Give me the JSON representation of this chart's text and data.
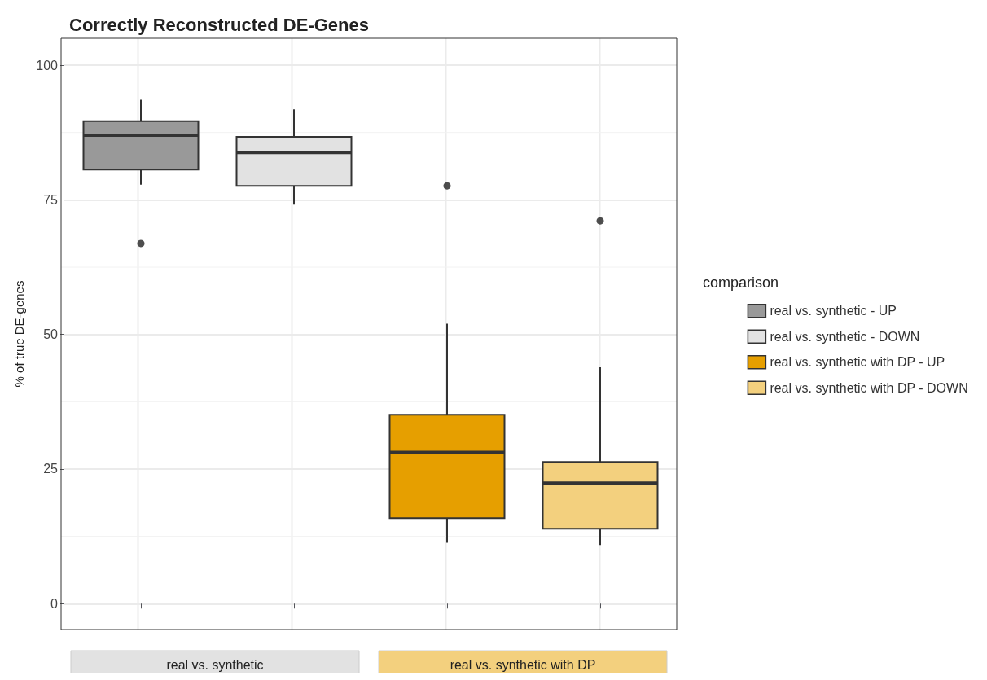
{
  "chart_data": {
    "type": "box",
    "title": "Correctly Reconstructed DE-Genes",
    "ylabel": "% of true DE-genes",
    "legend_title": "comparison",
    "categories": [
      null,
      null,
      null,
      null
    ],
    "series": [
      {
        "name": "real vs. synthetic - UP",
        "color": "#999999",
        "boxes": [
          {
            "low": 77.8,
            "q1": 80.6,
            "median": 87.0,
            "q3": 89.6,
            "high": 93.6,
            "outliers": [
              66.9
            ]
          },
          null,
          null,
          null
        ]
      },
      {
        "name": "real vs. synthetic - DOWN",
        "color": "#e2e2e2",
        "boxes": [
          null,
          {
            "low": 74.1,
            "q1": 77.6,
            "median": 83.8,
            "q3": 86.7,
            "high": 91.8
          },
          null,
          null
        ]
      },
      {
        "name": "real vs. synthetic with DP - UP",
        "color": "#e69f00",
        "boxes": [
          null,
          null,
          {
            "low": 11.3,
            "q1": 15.9,
            "median": 28.1,
            "q3": 35.1,
            "high": 52.0,
            "outliers": [
              77.6
            ]
          },
          null
        ]
      },
      {
        "name": "real vs. synthetic with DP - DOWN",
        "color": "#f3d07e",
        "boxes": [
          null,
          null,
          null,
          {
            "low": 10.9,
            "q1": 13.9,
            "median": 22.4,
            "q3": 26.3,
            "high": 43.9,
            "outliers": [
              71.1
            ]
          }
        ]
      }
    ],
    "annotations": [
      "real vs. synthetic",
      "real vs. synthetic with DP"
    ],
    "ylim": [
      -4.8,
      105
    ],
    "yticks": [
      0,
      25,
      50,
      75,
      100
    ],
    "grid": true,
    "legend": "right",
    "tick_labels": "y"
  }
}
